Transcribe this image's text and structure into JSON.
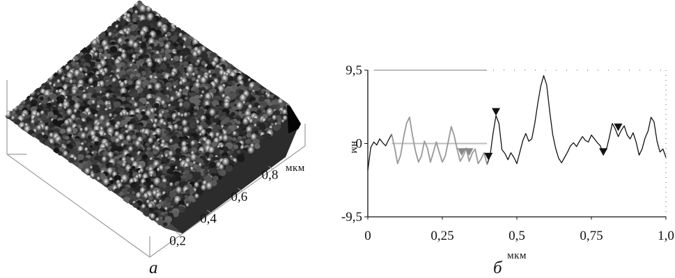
{
  "panel_labels": {
    "left": "а",
    "right": "б"
  },
  "surface": {
    "y_unit": "мкм",
    "y_ticks": [
      "0,2",
      "0,4",
      "0,6",
      "0,8"
    ],
    "colors": {
      "dark": "#1a1a1a",
      "light": "#e0e0e0",
      "axis": "#9a9a9a"
    }
  },
  "chart_data": {
    "type": "line",
    "xlabel": "мкм",
    "ylabel": "нм",
    "xlim": [
      0,
      1.0
    ],
    "ylim": [
      -9.5,
      9.5
    ],
    "x_ticks": [
      0,
      0.25,
      0.5,
      0.75,
      1.0
    ],
    "x_tick_labels": [
      "0",
      "0,25",
      "0,5",
      "0,75",
      "1,0"
    ],
    "y_ticks": [
      9.5,
      0,
      -9.5
    ],
    "y_tick_labels": [
      "9,5",
      "0",
      "-9,5"
    ],
    "grid": false,
    "colors": {
      "profile": "#111111",
      "highlight": "#9a9a9a",
      "reference": "#bcbcbc",
      "marker_dark": "#111111",
      "marker_gray": "#8a8a8a"
    },
    "series": [
      {
        "style": "profile",
        "x": [
          0,
          0.01,
          0.02,
          0.03,
          0.04,
          0.05,
          0.06,
          0.07,
          0.08,
          0.09,
          0.1,
          0.11,
          0.12,
          0.13,
          0.14,
          0.15,
          0.16,
          0.17,
          0.18,
          0.19,
          0.2,
          0.21,
          0.22,
          0.23,
          0.24,
          0.25,
          0.26,
          0.27,
          0.28,
          0.29,
          0.3,
          0.31,
          0.32,
          0.33,
          0.34,
          0.35,
          0.36,
          0.37,
          0.38,
          0.39,
          0.4,
          0.41,
          0.42,
          0.43,
          0.44,
          0.45,
          0.46,
          0.47,
          0.48,
          0.49,
          0.5,
          0.51,
          0.52,
          0.53,
          0.54,
          0.55,
          0.56,
          0.57,
          0.58,
          0.59,
          0.6,
          0.61,
          0.62,
          0.63,
          0.64,
          0.65,
          0.66,
          0.67,
          0.68,
          0.69,
          0.7,
          0.71,
          0.72,
          0.73,
          0.74,
          0.75,
          0.76,
          0.77,
          0.78,
          0.79,
          0.8,
          0.81,
          0.82,
          0.83,
          0.84,
          0.85,
          0.86,
          0.87,
          0.88,
          0.89,
          0.9,
          0.91,
          0.92,
          0.93,
          0.94,
          0.95,
          0.96,
          0.97,
          0.98,
          0.99,
          1.0
        ],
        "y": [
          -3.5,
          -0.5,
          0.2,
          -0.2,
          0.6,
          0.1,
          -0.3,
          0.5,
          1.2,
          -0.5,
          -2.6,
          -1.5,
          0.8,
          2.6,
          3.4,
          1.0,
          -1.0,
          -2.4,
          -1.6,
          0.3,
          -0.6,
          -2.4,
          -1.1,
          0.2,
          -1.2,
          -2.4,
          -1.6,
          0.3,
          2.2,
          1.0,
          -0.8,
          -2.3,
          -1.6,
          -0.6,
          -2.3,
          -1.3,
          -0.7,
          -2.6,
          -2.0,
          -1.2,
          -2.7,
          -1.6,
          1.3,
          3.6,
          2.6,
          -0.8,
          -1.3,
          -2.1,
          -1.2,
          -1.8,
          -2.6,
          -1.1,
          0.4,
          1.3,
          0.3,
          0.6,
          2.6,
          5.2,
          7.4,
          8.8,
          7.6,
          4.2,
          1.2,
          -0.6,
          -1.9,
          -2.5,
          -1.8,
          -1.1,
          -0.3,
          0.1,
          -0.4,
          0.3,
          0.9,
          0.4,
          0.2,
          1.1,
          0.6,
          0.1,
          -0.3,
          -1.4,
          -0.8,
          0.8,
          2.6,
          1.9,
          0.9,
          1.7,
          2.3,
          1.1,
          0.6,
          1.4,
          0.2,
          -1.5,
          -0.7,
          0.7,
          1.6,
          3.4,
          2.8,
          0.3,
          -1.1,
          -0.7,
          -1.8
        ]
      },
      {
        "style": "highlight",
        "x": [
          0.08,
          0.09,
          0.1,
          0.11,
          0.12,
          0.13,
          0.14,
          0.15,
          0.16,
          0.17,
          0.18,
          0.19,
          0.2,
          0.21,
          0.22,
          0.23,
          0.24,
          0.25,
          0.26,
          0.27,
          0.28,
          0.29,
          0.3,
          0.31,
          0.32,
          0.33,
          0.34,
          0.35,
          0.36,
          0.37,
          0.38,
          0.39,
          0.4
        ],
        "y": [
          1.2,
          -0.5,
          -2.6,
          -1.5,
          0.8,
          2.6,
          3.4,
          1.0,
          -1.0,
          -2.4,
          -1.6,
          0.3,
          -0.6,
          -2.4,
          -1.1,
          0.2,
          -1.2,
          -2.4,
          -1.6,
          0.3,
          2.2,
          1.0,
          -0.8,
          -2.3,
          -1.6,
          -0.6,
          -2.3,
          -1.3,
          -0.7,
          -2.6,
          -2.0,
          -1.2,
          -2.7
        ]
      }
    ],
    "reference_lines": [
      {
        "y": 9.5,
        "x": [
          0.02,
          0.4
        ]
      },
      {
        "y": 0,
        "x": [
          0.08,
          0.4
        ]
      }
    ],
    "markers": [
      {
        "x": 0.315,
        "y": -1.6,
        "direction": "down",
        "style": "marker_gray"
      },
      {
        "x": 0.34,
        "y": -1.6,
        "direction": "down",
        "style": "marker_gray"
      },
      {
        "x": 0.405,
        "y": -2.2,
        "direction": "down",
        "style": "marker_dark"
      },
      {
        "x": 0.43,
        "y": 3.6,
        "direction": "down",
        "style": "marker_dark"
      },
      {
        "x": 0.79,
        "y": -1.6,
        "direction": "down",
        "style": "marker_dark"
      },
      {
        "x": 0.84,
        "y": 1.6,
        "direction": "down",
        "style": "marker_dark"
      }
    ]
  }
}
